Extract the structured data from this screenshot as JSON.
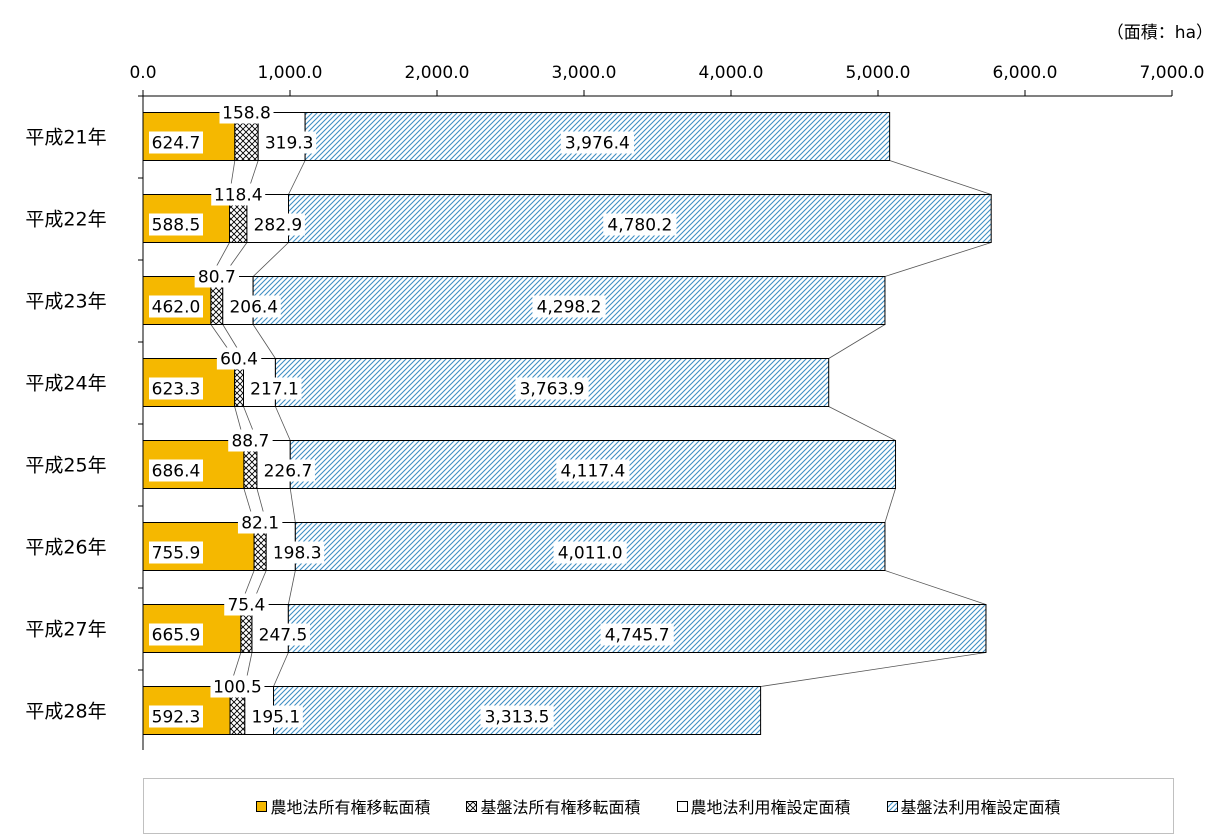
{
  "unit_label": "（面積：ha）",
  "colors": {
    "nouchi_shoyuu": "#f5b800",
    "kiban_shoyuu": "#ffffff",
    "nouchi_riyou": "#ffffff",
    "kiban_riyou": "#9fd3ea"
  },
  "legend": [
    {
      "label": "農地法所有権移転面積",
      "swatch": "solid-orange"
    },
    {
      "label": "基盤法所有権移転面積",
      "swatch": "crosshatch"
    },
    {
      "label": "農地法利用権設定面積",
      "swatch": "white"
    },
    {
      "label": "基盤法利用権設定面積",
      "swatch": "diagonal-blue"
    }
  ],
  "chart_data": {
    "type": "bar",
    "orientation": "horizontal",
    "stacked": true,
    "categories": [
      "平成21年",
      "平成22年",
      "平成23年",
      "平成24年",
      "平成25年",
      "平成26年",
      "平成27年",
      "平成28年"
    ],
    "series": [
      {
        "name": "農地法所有権移転面積",
        "values": [
          624.7,
          588.5,
          462.0,
          623.3,
          686.4,
          755.9,
          665.9,
          592.3
        ]
      },
      {
        "name": "基盤法所有権移転面積",
        "values": [
          158.8,
          118.4,
          80.7,
          60.4,
          88.7,
          82.1,
          75.4,
          100.5
        ]
      },
      {
        "name": "農地法利用権設定面積",
        "values": [
          319.3,
          282.9,
          206.4,
          217.1,
          226.7,
          198.3,
          247.5,
          195.1
        ]
      },
      {
        "name": "基盤法利用権設定面積",
        "values": [
          3976.4,
          4780.2,
          4298.2,
          3763.9,
          4117.4,
          4011.0,
          4745.7,
          3313.5
        ]
      }
    ],
    "data_labels": [
      [
        "624.7",
        "158.8",
        "319.3",
        "3,976.4"
      ],
      [
        "588.5",
        "118.4",
        "282.9",
        "4,780.2"
      ],
      [
        "462.0",
        "80.7",
        "206.4",
        "4,298.2"
      ],
      [
        "623.3",
        "60.4",
        "217.1",
        "3,763.9"
      ],
      [
        "686.4",
        "88.7",
        "226.7",
        "4,117.4"
      ],
      [
        "755.9",
        "82.1",
        "198.3",
        "4,011.0"
      ],
      [
        "665.9",
        "75.4",
        "247.5",
        "4,745.7"
      ],
      [
        "592.3",
        "100.5",
        "195.1",
        "3,313.5"
      ]
    ],
    "xlim": [
      0,
      7000
    ],
    "ticks": [
      0,
      1000,
      2000,
      3000,
      4000,
      5000,
      6000,
      7000
    ],
    "tick_labels": [
      "0.0",
      "1,000.0",
      "2,000.0",
      "3,000.0",
      "4,000.0",
      "5,000.0",
      "6,000.0",
      "7,000.0"
    ],
    "axis_position": "top",
    "grid": false,
    "series_lines": true,
    "legend_position": "bottom"
  }
}
